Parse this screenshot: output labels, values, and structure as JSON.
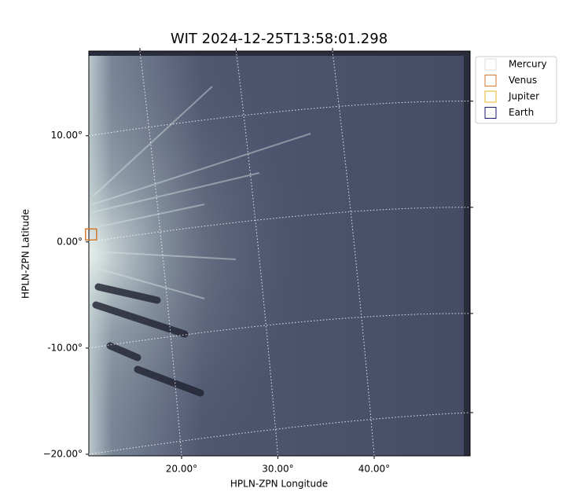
{
  "chart_data": {
    "type": "image",
    "title": "WIT 2024-12-25T13:58:01.298",
    "x_label": "HPLN-ZPN Longitude",
    "y_label": "HPLN-ZPN Latitude",
    "xlim": [
      10.37,
      49.96
    ],
    "ylim": [
      -20.15,
      17.97
    ],
    "xticks": [
      {
        "value": 20,
        "label": "20.00°"
      },
      {
        "value": 30,
        "label": "30.00°"
      },
      {
        "value": 40,
        "label": "40.00°"
      }
    ],
    "yticks": [
      {
        "value": 10,
        "label": "10.00°"
      },
      {
        "value": 0,
        "label": "0.00°"
      },
      {
        "value": -10,
        "label": "-10.00°"
      },
      {
        "value": -20,
        "label": "−20.00°"
      }
    ],
    "grid": true,
    "legend": "upper right",
    "series": [
      {
        "name": "Mercury",
        "color": "#dddddd"
      },
      {
        "name": "Venus",
        "color": "#d2782d",
        "x": [
          10.6
        ],
        "y": [
          0.7
        ]
      },
      {
        "name": "Jupiter",
        "color": "#e6b422"
      },
      {
        "name": "Earth",
        "color": "#1a1a6e"
      }
    ]
  }
}
